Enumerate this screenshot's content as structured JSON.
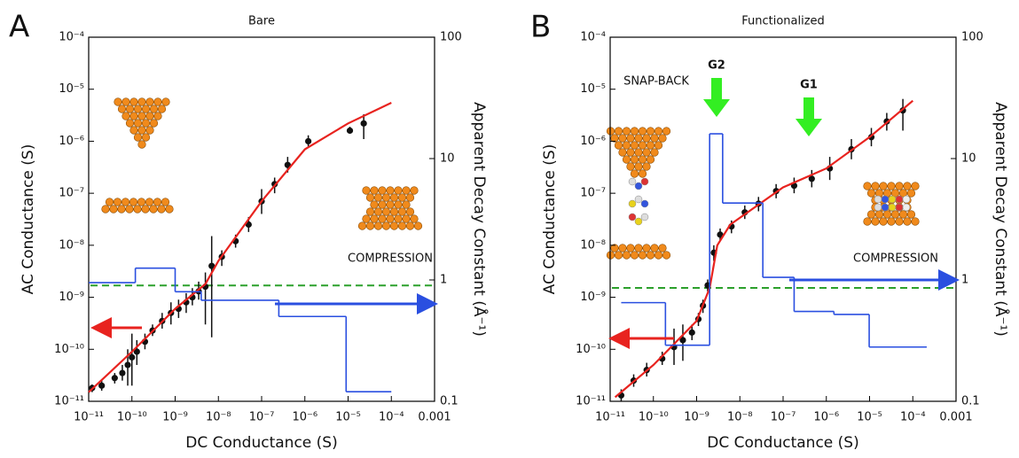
{
  "chart_data": [
    {
      "type": "scatter",
      "panel": "A",
      "title": "Bare",
      "x_label": "DC Conductance (S)",
      "y_label": "AC Conductance (S)",
      "y2_label": "Apparent Decay Constant (Å⁻¹)",
      "log_x": true,
      "log_y": true,
      "log_y2": true,
      "xlim": [
        1e-11,
        0.001
      ],
      "ylim": [
        1e-11,
        0.0001
      ],
      "y2lim": [
        0.1,
        100
      ],
      "xticks": [
        {
          "value": 1e-11,
          "label": "10⁻¹¹"
        },
        {
          "value": 1e-10,
          "label": "10⁻¹⁰"
        },
        {
          "value": 1e-09,
          "label": "10⁻⁹"
        },
        {
          "value": 1e-08,
          "label": "10⁻⁸"
        },
        {
          "value": 1e-07,
          "label": "10⁻⁷"
        },
        {
          "value": 1e-06,
          "label": "10⁻⁶"
        },
        {
          "value": 1e-05,
          "label": "10⁻⁵"
        },
        {
          "value": 0.0001,
          "label": "10⁻⁴"
        },
        0.001
      ],
      "yticks": [
        {
          "value": 1e-11,
          "label": "10⁻¹¹"
        },
        {
          "value": 1e-10,
          "label": "10⁻¹⁰"
        },
        {
          "value": 1e-09,
          "label": "10⁻⁹"
        },
        {
          "value": 1e-08,
          "label": "10⁻⁸"
        },
        {
          "value": 1e-07,
          "label": "10⁻⁷"
        },
        {
          "value": 1e-06,
          "label": "10⁻⁶"
        },
        {
          "value": 1e-05,
          "label": "10⁻⁵"
        },
        {
          "value": 0.0001,
          "label": "10⁻⁴"
        }
      ],
      "y2ticks": [
        0.1,
        1,
        10,
        100
      ],
      "series": [
        {
          "color": "#111111",
          "x": [
            1.2e-11,
            2e-11,
            4e-11,
            6e-11,
            8e-11,
            1e-10,
            1.3e-10,
            2e-10,
            3e-10,
            5e-10,
            8e-10,
            1.2e-09,
            1.8e-09,
            2.5e-09,
            3.5e-09,
            5e-09,
            7e-09,
            1.2e-08,
            2.5e-08,
            5e-08,
            1e-07,
            2e-07,
            4e-07,
            1.2e-06,
            1.1e-05,
            2.3e-05
          ],
          "values": [
            1.8e-11,
            2e-11,
            2.8e-11,
            3.5e-11,
            5e-11,
            7e-11,
            9e-11,
            1.4e-10,
            2.3e-10,
            3.5e-10,
            5e-10,
            6e-10,
            8e-10,
            1e-09,
            1.3e-09,
            1.6e-09,
            4e-09,
            6e-09,
            1.2e-08,
            2.5e-08,
            7e-08,
            1.5e-07,
            3.5e-07,
            1e-06,
            1.6e-06,
            2.2e-06
          ],
          "y_low": [
            1.5e-11,
            1.6e-11,
            2.2e-11,
            2.5e-11,
            2e-11,
            2e-11,
            5e-11,
            1e-10,
            1.8e-10,
            2.5e-10,
            3e-10,
            4e-10,
            5e-10,
            7e-10,
            9e-10,
            3e-10,
            1.7e-10,
            4e-09,
            9e-09,
            1.8e-08,
            4e-08,
            1e-07,
            2.5e-07,
            8e-07,
            1.4e-06,
            1.1e-06
          ],
          "y_high": [
            2.1e-11,
            2.5e-11,
            3.5e-11,
            5e-11,
            1e-10,
            2e-10,
            1.5e-10,
            2e-10,
            3e-10,
            5e-10,
            8e-10,
            9e-10,
            1.2e-09,
            1.5e-09,
            2e-09,
            3e-09,
            1.5e-08,
            8e-09,
            1.6e-08,
            3.5e-08,
            1.2e-07,
            2e-07,
            5e-07,
            1.3e-06,
            1.9e-06,
            3.3e-06
          ]
        },
        {
          "color": "#e8231f",
          "x": [
            1e-11,
            1e-10,
            1e-09,
            5e-09,
            1e-08,
            1e-07,
            1e-06,
            1e-05,
            0.0001
          ],
          "values": [
            1.5e-11,
            9e-11,
            6e-10,
            1.8e-09,
            5e-09,
            7e-08,
            7e-07,
            2.2e-06,
            5.5e-06
          ]
        },
        {
          "color": "#2a4fe0",
          "axis": "y2",
          "bins": [
            1e-11,
            1.2e-10,
            1e-09,
            4e-09,
            2.5e-07,
            9e-06,
            0.0001
          ],
          "values": [
            0.95,
            1.25,
            0.8,
            0.68,
            0.5,
            0.12
          ]
        }
      ],
      "reference_line": {
        "value": 0.9,
        "axis": "y2",
        "color": "#2ca02c"
      },
      "annotations": {
        "compression": "COMPRESSION"
      }
    },
    {
      "type": "scatter",
      "panel": "B",
      "title": "Functionalized",
      "x_label": "DC Conductance (S)",
      "y_label": "AC Conductance (S)",
      "y2_label": "Apparent Decay Constant (Å⁻¹)",
      "log_x": true,
      "log_y": true,
      "log_y2": true,
      "xlim": [
        1e-11,
        0.001
      ],
      "ylim": [
        1e-11,
        0.0001
      ],
      "y2lim": [
        0.1,
        100
      ],
      "xticks": [
        {
          "value": 1e-11,
          "label": "10⁻¹¹"
        },
        {
          "value": 1e-10,
          "label": "10⁻¹⁰"
        },
        {
          "value": 1e-09,
          "label": "10⁻⁹"
        },
        {
          "value": 1e-08,
          "label": "10⁻⁸"
        },
        {
          "value": 1e-07,
          "label": "10⁻⁷"
        },
        {
          "value": 1e-06,
          "label": "10⁻⁶"
        },
        {
          "value": 1e-05,
          "label": "10⁻⁵"
        },
        {
          "value": 0.0001,
          "label": "10⁻⁴"
        },
        0.001
      ],
      "yticks": [
        {
          "value": 1e-11,
          "label": "10⁻¹¹"
        },
        {
          "value": 1e-10,
          "label": "10⁻¹⁰"
        },
        {
          "value": 1e-09,
          "label": "10⁻⁹"
        },
        {
          "value": 1e-08,
          "label": "10⁻⁸"
        },
        {
          "value": 1e-07,
          "label": "10⁻⁷"
        },
        {
          "value": 1e-06,
          "label": "10⁻⁶"
        },
        {
          "value": 1e-05,
          "label": "10⁻⁵"
        },
        {
          "value": 0.0001,
          "label": "10⁻⁴"
        }
      ],
      "y2ticks": [
        0.1,
        1,
        10,
        100
      ],
      "series": [
        {
          "color": "#111111",
          "x": [
            1.8e-11,
            3.5e-11,
            7e-11,
            1.6e-10,
            3e-10,
            4.8e-10,
            7.8e-10,
            1.1e-09,
            1.4e-09,
            1.8e-09,
            2.5e-09,
            3.5e-09,
            6.4e-09,
            1.3e-08,
            2.7e-08,
            6.9e-08,
            1.8e-07,
            4.6e-07,
            1.2e-06,
            3.8e-06,
            1.1e-05,
            2.5e-05,
            5.9e-05
          ],
          "values": [
            1.3e-11,
            2.5e-11,
            4e-11,
            6.6e-11,
            1.1e-10,
            1.5e-10,
            2.1e-10,
            3.8e-10,
            6.9e-10,
            1.7e-09,
            7.2e-09,
            1.6e-08,
            2.3e-08,
            4.3e-08,
            6.3e-08,
            1.1e-07,
            1.4e-07,
            1.9e-07,
            3e-07,
            7e-07,
            1.2e-06,
            2.4e-06,
            3.9e-06
          ],
          "y_low": [
            1e-11,
            1.9e-11,
            3e-11,
            5e-11,
            5e-11,
            6e-11,
            1.5e-10,
            2.8e-10,
            5e-10,
            1.3e-09,
            5e-09,
            1.2e-08,
            1.7e-08,
            3.2e-08,
            4.5e-08,
            8e-08,
            1e-07,
            1.3e-07,
            1.8e-07,
            4.5e-07,
            8e-07,
            1.6e-06,
            1.6e-06
          ],
          "y_high": [
            1.7e-11,
            3.3e-11,
            5.5e-11,
            9e-11,
            2.5e-10,
            3e-10,
            3e-10,
            5e-10,
            9e-10,
            2.2e-09,
            1e-08,
            2.1e-08,
            3e-08,
            5.8e-08,
            8.5e-08,
            1.5e-07,
            2e-07,
            2.8e-07,
            5e-07,
            1.1e-06,
            1.8e-06,
            3.5e-06,
            6.5e-06
          ]
        },
        {
          "color": "#e8231f",
          "x": [
            1.3e-11,
            1e-10,
            1e-09,
            2e-09,
            3e-09,
            6e-09,
            1e-07,
            1e-06,
            1e-05,
            0.0001
          ],
          "values": [
            1.2e-11,
            5e-11,
            3.5e-10,
            1.5e-09,
            1e-08,
            2.5e-08,
            1.3e-07,
            3e-07,
            1.2e-06,
            6e-06
          ]
        },
        {
          "color": "#2a4fe0",
          "axis": "y2",
          "bins": [
            1.8e-11,
            1.9e-10,
            2e-09,
            4e-09,
            3.4e-08,
            1.8e-07,
            1.5e-06,
            9.8e-06,
            0.00021
          ],
          "values": [
            0.65,
            0.29,
            16,
            4.3,
            1.05,
            0.55,
            0.52,
            0.28
          ]
        }
      ],
      "reference_line": {
        "value": 0.86,
        "axis": "y2",
        "color": "#2ca02c"
      },
      "annotations": {
        "compression": "COMPRESSION",
        "snap_back": "SNAP-BACK",
        "g1": "G1",
        "g2": "G2"
      }
    }
  ]
}
